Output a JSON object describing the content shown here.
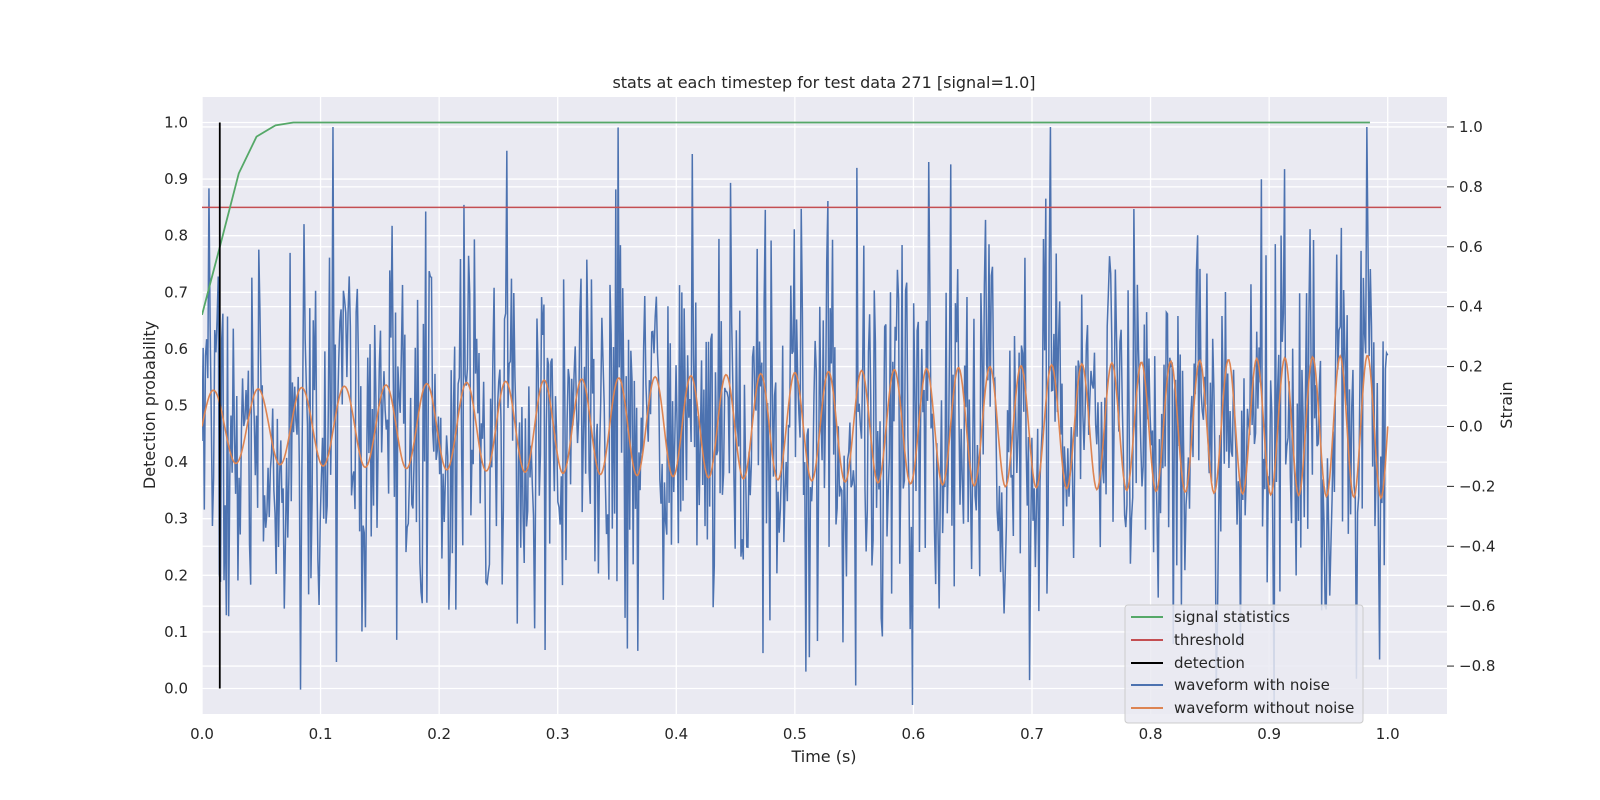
{
  "chart_data": {
    "type": "line",
    "title": "stats at each timestep for test data 271 [signal=1.0]",
    "xlabel": "Time (s)",
    "ylabel_left": "Detection probability",
    "ylabel_right": "Strain",
    "xlim": [
      0.0,
      1.05
    ],
    "ylim_left": [
      -0.045,
      1.045
    ],
    "ylim_right": [
      -0.96,
      1.1
    ],
    "x_ticks": [
      "0.0",
      "0.1",
      "0.2",
      "0.3",
      "0.4",
      "0.5",
      "0.6",
      "0.7",
      "0.8",
      "0.9",
      "1.0"
    ],
    "y_ticks_left": [
      "0.0",
      "0.1",
      "0.2",
      "0.3",
      "0.4",
      "0.5",
      "0.6",
      "0.7",
      "0.8",
      "0.9",
      "1.0"
    ],
    "y_ticks_right": [
      "−0.8",
      "−0.6",
      "−0.4",
      "−0.2",
      "0.0",
      "0.2",
      "0.4",
      "0.6",
      "0.8",
      "1.0"
    ],
    "grid": true,
    "legend_position": "lower-right",
    "colors": {
      "background": "#eaeaf2",
      "grid": "#ffffff",
      "signal_statistics": "#55a868",
      "threshold": "#c44e52",
      "detection": "#000000",
      "waveform_noise": "#4c72b0",
      "waveform_clean": "#dd8452"
    },
    "series": [
      {
        "name": "signal statistics",
        "axis": "left",
        "x": [
          0.0,
          0.015,
          0.031,
          0.046,
          0.062,
          0.077,
          0.1,
          0.2,
          0.4,
          0.6,
          0.8,
          0.985
        ],
        "y": [
          0.66,
          0.78,
          0.91,
          0.975,
          0.995,
          1.0,
          1.0,
          1.0,
          1.0,
          1.0,
          1.0,
          1.0
        ]
      },
      {
        "name": "threshold",
        "axis": "left",
        "x": [
          0.0,
          1.045
        ],
        "y": [
          0.85,
          0.85
        ]
      },
      {
        "name": "detection",
        "axis": "left",
        "x": [
          0.015,
          0.015
        ],
        "y": [
          0.0,
          1.0
        ]
      },
      {
        "name": "waveform with noise",
        "axis": "right",
        "x_range": [
          0.0,
          1.0
        ],
        "n_points": 1024,
        "amplitude_std": 0.3
      },
      {
        "name": "waveform without noise",
        "axis": "right",
        "x_range": [
          0.0,
          1.0
        ],
        "n_points": 1024,
        "freq_start_hz": 26,
        "freq_end_hz": 44,
        "amp_start": 0.12,
        "amp_end": 0.24
      }
    ],
    "legend": [
      "signal statistics",
      "threshold",
      "detection",
      "waveform with noise",
      "waveform without noise"
    ]
  }
}
